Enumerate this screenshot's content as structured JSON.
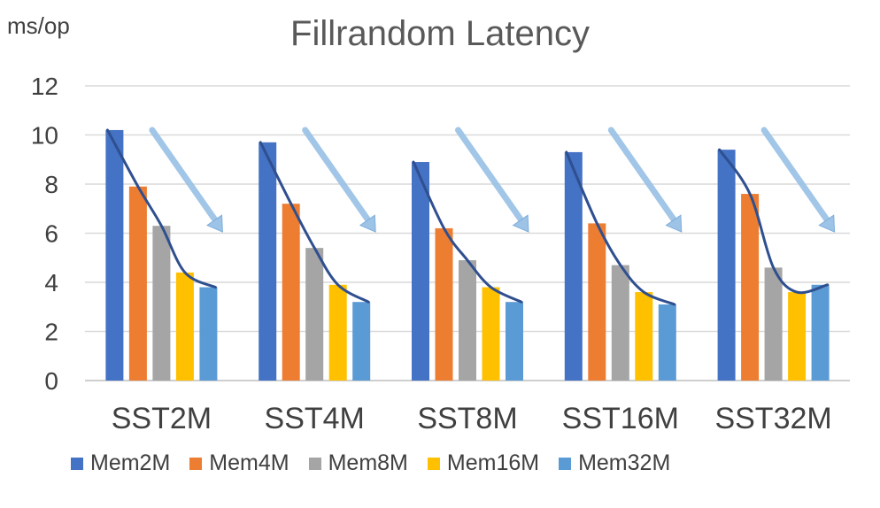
{
  "chart_data": {
    "type": "bar",
    "title": "Fillrandom Latency",
    "ylabel": "ms/op",
    "xlabel": "",
    "ylim": [
      0,
      12
    ],
    "yticks": [
      0,
      2,
      4,
      6,
      8,
      10,
      12
    ],
    "grid": true,
    "legend_position": "bottom",
    "categories": [
      "SST2M",
      "SST4M",
      "SST8M",
      "SST16M",
      "SST32M"
    ],
    "series": [
      {
        "name": "Mem2M",
        "color": "#4472C4",
        "values": [
          10.2,
          9.7,
          8.9,
          9.3,
          9.4
        ]
      },
      {
        "name": "Mem4M",
        "color": "#ED7D31",
        "values": [
          7.9,
          7.2,
          6.2,
          6.4,
          7.6
        ]
      },
      {
        "name": "Mem8M",
        "color": "#A5A5A5",
        "values": [
          6.3,
          5.4,
          4.9,
          4.7,
          4.6
        ]
      },
      {
        "name": "Mem16M",
        "color": "#FFC000",
        "values": [
          4.4,
          3.9,
          3.8,
          3.6,
          3.6
        ]
      },
      {
        "name": "Mem32M",
        "color": "#5B9BD5",
        "values": [
          3.8,
          3.2,
          3.2,
          3.1,
          3.9
        ]
      }
    ],
    "annotations": {
      "trend_line_color": "#2F4F8F",
      "arrow_color": "#9DC3E6",
      "arrow_direction": "down-right"
    }
  }
}
